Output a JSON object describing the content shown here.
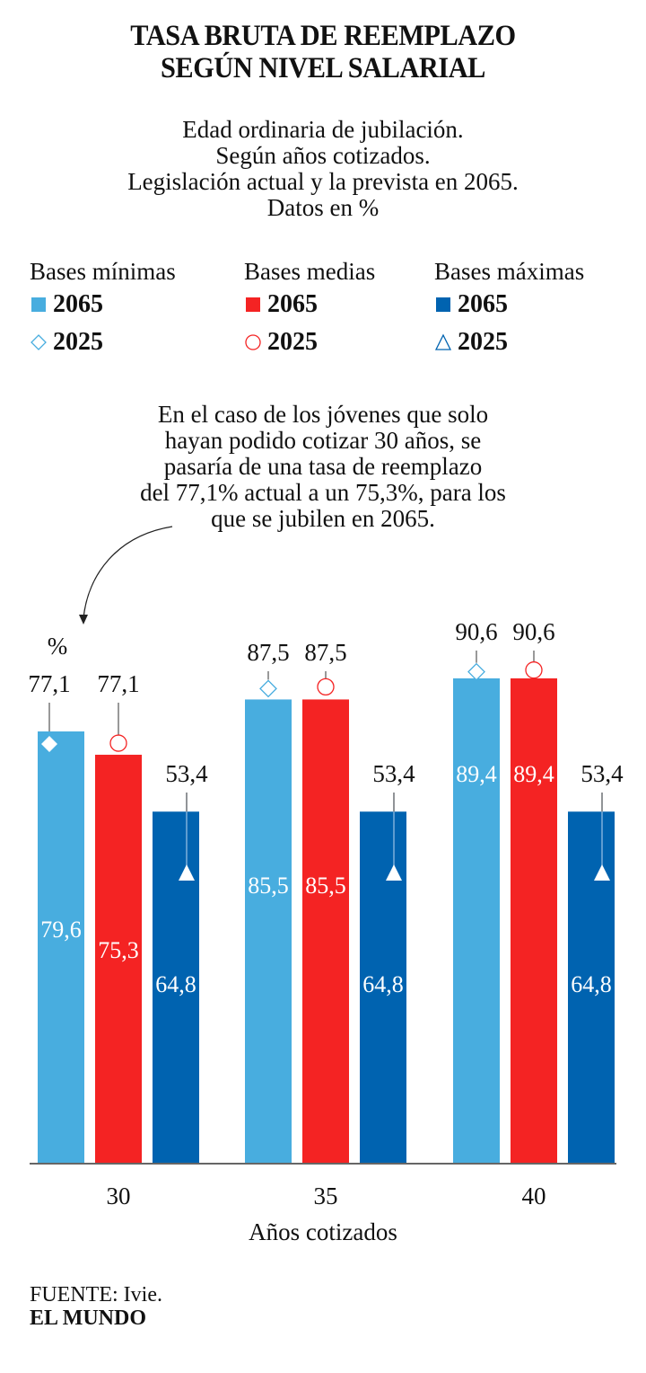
{
  "title_lines": [
    "TASA BRUTA DE REEMPLAZO",
    "SEGÚN NIVEL SALARIAL"
  ],
  "subtitle_lines": [
    "Edad ordinaria de jubilación.",
    "Según años cotizados.",
    "Legislación actual y la prevista en 2065.",
    "Datos en %"
  ],
  "legend": [
    {
      "group": "Bases mínimas",
      "color": "#48ADDF",
      "bar_label": "2065",
      "marker_label": "2025",
      "marker": "diamond-icon"
    },
    {
      "group": "Bases medias",
      "color": "#F42323",
      "bar_label": "2065",
      "marker_label": "2025",
      "marker": "circle-icon"
    },
    {
      "group": "Bases máximas",
      "color": "#0063B0",
      "bar_label": "2065",
      "marker_label": "2025",
      "marker": "triangle-icon"
    }
  ],
  "annotation_lines": [
    "En el caso de los jóvenes que solo",
    "hayan podido cotizar 30 años, se",
    "pasaría de una tasa de reemplazo",
    "del 77,1% actual a un 75,3%, para los",
    "que se jubilen en 2065."
  ],
  "footer": {
    "source": "FUENTE: Ivie.",
    "brand": "EL MUNDO"
  },
  "chart_data": {
    "type": "bar",
    "title": "TASA BRUTA DE REEMPLAZO SEGÚN NIVEL SALARIAL",
    "xlabel": "Años cotizados",
    "ylabel": "%",
    "unit_label": "%",
    "categories": [
      "30",
      "35",
      "40"
    ],
    "ylim": [
      0,
      100
    ],
    "grid": false,
    "legend_position": "top",
    "series": [
      {
        "name": "Bases mínimas 2065",
        "color": "#48ADDF",
        "values": [
          79.6,
          85.5,
          89.4
        ],
        "labels": [
          "79,6",
          "85,5",
          "89,4"
        ]
      },
      {
        "name": "Bases medias 2065",
        "color": "#F42323",
        "values": [
          75.3,
          85.5,
          89.4
        ],
        "labels": [
          "75,3",
          "85,5",
          "89,4"
        ]
      },
      {
        "name": "Bases máximas 2065",
        "color": "#0063B0",
        "values": [
          64.8,
          64.8,
          64.8
        ],
        "labels": [
          "64,8",
          "64,8",
          "64,8"
        ]
      }
    ],
    "markers_2025": [
      {
        "name": "Bases mínimas 2025",
        "shape": "diamond",
        "values": [
          77.1,
          87.5,
          90.6
        ],
        "labels": [
          "77,1",
          "87,5",
          "90,6"
        ]
      },
      {
        "name": "Bases medias 2025",
        "shape": "circle",
        "values": [
          77.1,
          87.5,
          90.6
        ],
        "labels": [
          "77,1",
          "87,5",
          "90,6"
        ]
      },
      {
        "name": "Bases máximas 2025",
        "shape": "triangle",
        "values": [
          53.4,
          53.4,
          53.4
        ],
        "labels": [
          "53,4",
          "53,4",
          "53,4"
        ]
      }
    ]
  }
}
